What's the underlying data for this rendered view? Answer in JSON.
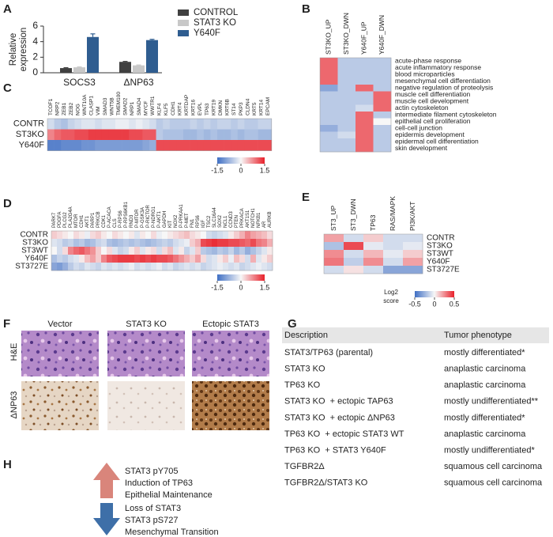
{
  "panel_labels": [
    "A",
    "B",
    "C",
    "D",
    "E",
    "F",
    "G",
    "H"
  ],
  "chart_data": [
    {
      "type": "bar",
      "ylabel": [
        "Relative",
        "expression"
      ],
      "categories": [
        "SOCS3",
        "ΔNP63"
      ],
      "ylim": [
        0,
        6
      ],
      "yticks": [
        0,
        2,
        4,
        6
      ],
      "series": [
        {
          "name": "CONTROL",
          "color": "#404040",
          "values": [
            0.6,
            1.4
          ],
          "errors": [
            0.05,
            0.06
          ]
        },
        {
          "name": "STAT3 KO",
          "color": "#c8c8c8",
          "values": [
            0.7,
            0.95
          ],
          "errors": [
            0.05,
            0.05
          ]
        },
        {
          "name": "Y640F",
          "color": "#2f5d90",
          "values": [
            4.6,
            4.2
          ],
          "errors": [
            0.4,
            0.1
          ]
        }
      ]
    },
    {
      "type": "heatmap",
      "columns": [
        "ST3KO_UP",
        "ST3KO_DWN",
        "Y640F_UP",
        "Y640F_DWN"
      ],
      "rows": [
        "acute-phase response",
        "acute inflammatory response",
        "blood microparticles",
        "mesenchymal cell differentiation",
        "negative regulation of proteolysis",
        "muscle cell differentiation",
        "muscle cell development",
        "actin cytoskeleton",
        "intermediate filament cytoskeleton",
        "epithelial cell proliferation",
        "cell-cell junction",
        "epidermis development",
        "epidermal cell differentiation",
        "skin development"
      ],
      "values": [
        [
          1,
          -0.5,
          -0.5,
          -0.5
        ],
        [
          1,
          -0.5,
          -0.5,
          -0.5
        ],
        [
          1,
          -0.5,
          -0.5,
          -0.5
        ],
        [
          1,
          -0.5,
          -0.5,
          -0.5
        ],
        [
          -0.9,
          -0.5,
          1,
          -0.5
        ],
        [
          -0.5,
          -0.5,
          -0.5,
          1
        ],
        [
          -0.5,
          -0.5,
          -0.5,
          1
        ],
        [
          -0.5,
          -0.5,
          -0.3,
          1
        ],
        [
          -0.5,
          -0.5,
          1,
          -0.5
        ],
        [
          -0.5,
          -0.5,
          1,
          0
        ],
        [
          -0.8,
          -0.5,
          1,
          -0.5
        ],
        [
          -0.5,
          -0.3,
          1,
          -0.5
        ],
        [
          -0.5,
          -0.5,
          1,
          -0.5
        ],
        [
          -0.5,
          -0.5,
          1,
          -0.5
        ]
      ],
      "colorscale": {
        "lim": [
          -1.5,
          1.5
        ],
        "colors": [
          "#3f6fc4",
          "#f7f7f7",
          "#e8202a"
        ]
      }
    },
    {
      "type": "heatmap",
      "columns": [
        "TCOF1",
        "NRP2",
        "ZEB1",
        "ZEB2",
        "NOG",
        "WNT10A",
        "CLASP1",
        "VIM",
        "SMAD3",
        "WNT5B",
        "TMEM100",
        "SMAD2",
        "NRP1",
        "SMAD4",
        "MYCF",
        "WWTR1",
        "KLF4",
        "KLF5",
        "CDH1",
        "KRT4",
        "KRTDAP",
        "KRT16",
        "EVPL",
        "TP63",
        "KRT19",
        "DMKN",
        "KRT6B",
        "ST14",
        "PKP3",
        "CLDN4",
        "KRT5",
        "KRT14",
        "EPCAM"
      ],
      "rows": [
        "CONTR",
        "ST3KO",
        "Y640F"
      ],
      "values": [
        [
          -0.3,
          -0.5,
          -0.6,
          -0.4,
          -0.3,
          -0.2,
          -0.2,
          -0.3,
          -0.2,
          -0.2,
          -0.1,
          -0.1,
          -0.2,
          -0.1,
          -0.2,
          -0.3,
          -0.5,
          -0.4,
          -0.5,
          -0.5,
          -0.5,
          -0.4,
          -0.5,
          -0.4,
          -0.5,
          -0.4,
          -0.4,
          -0.5,
          -0.4,
          -0.5,
          -0.5,
          -0.4,
          -0.4
        ],
        [
          0.8,
          1.0,
          1.1,
          1.1,
          1.2,
          1.2,
          1.3,
          1.3,
          1.3,
          1.3,
          1.3,
          1.3,
          1.2,
          1.2,
          1.1,
          1.1,
          -0.5,
          -0.6,
          -0.6,
          -0.6,
          -0.7,
          -0.7,
          -0.6,
          -0.7,
          -0.6,
          -0.7,
          -0.7,
          -0.6,
          -0.7,
          -0.6,
          -0.6,
          -0.7,
          -0.7
        ],
        [
          -1.3,
          -1.3,
          -1.2,
          -1.2,
          -1.2,
          -1.1,
          -1.1,
          -1.0,
          -1.0,
          -1.0,
          -1.0,
          -1.0,
          -1.0,
          -1.0,
          -0.9,
          -0.8,
          1.2,
          1.2,
          1.2,
          1.2,
          1.2,
          1.2,
          1.2,
          1.2,
          1.2,
          1.2,
          1.2,
          1.2,
          1.2,
          1.2,
          1.2,
          1.2,
          1.2
        ]
      ],
      "colorscale": {
        "lim": [
          -1.5,
          1.5
        ],
        "ticks": [
          -1.5,
          0,
          1.5
        ],
        "colors": [
          "#3f6fc4",
          "#f7f7f7",
          "#e8202a"
        ]
      }
    },
    {
      "type": "heatmap",
      "columns": [
        "PARK7",
        "PDGFA",
        "PLCG2",
        "PLA2G4A",
        "MTOR",
        "CDH1",
        "AKT1",
        "PARP1",
        "PRKCB",
        "CDK1",
        "P-ACACA",
        "CLS",
        "P-RPS6",
        "P-RPS6KB1",
        "RND3",
        "P-MTOR",
        "P-GSK3A",
        "P-RICTOR",
        "P-NDRG1",
        "P-AKT1",
        "GAPDH",
        "KIT",
        "NOX2",
        "P-PRKAA1",
        "P-MET",
        "FN1",
        "RPS6",
        "IGF",
        "TSC2",
        "SLC16A4",
        "SOX2",
        "NCL1",
        "CCND3",
        "PTEN",
        "PRKACA",
        "AKT1S1",
        "NOTCH1",
        "NFKB1",
        "AR",
        "AURKB"
      ],
      "rows": [
        "CONTR",
        "ST3KO",
        "ST3WT",
        "Y640F",
        "ST3727E"
      ],
      "values": [
        [
          0.3,
          0.2,
          0.1,
          0.0,
          0.2,
          0.1,
          -0.1,
          0.2,
          0.3,
          0.1,
          0.0,
          0.2,
          0.1,
          0.0,
          0.1,
          -0.2,
          0.1,
          0.0,
          0.2,
          -0.1,
          0.0,
          0.1,
          0.2,
          0.3,
          0.4,
          0.2,
          0.1,
          0.0,
          -0.3,
          -0.4,
          -0.3,
          -0.2,
          0.1,
          0.3,
          0.5,
          0.8,
          0.6,
          0.5,
          0.4,
          0.2
        ],
        [
          -0.2,
          -0.3,
          -0.5,
          -0.4,
          -0.6,
          -0.5,
          -0.7,
          -0.6,
          -0.4,
          -0.3,
          -0.6,
          -0.7,
          -0.6,
          -0.5,
          -0.6,
          -0.5,
          -0.6,
          -0.7,
          -0.6,
          -0.5,
          -0.4,
          -0.5,
          -0.3,
          -0.2,
          -0.1,
          0.3,
          0.5,
          1.2,
          1.3,
          1.4,
          1.3,
          1.3,
          1.2,
          1.2,
          1.1,
          1.0,
          1.2,
          0.9,
          0.8,
          0.5
        ],
        [
          0.0,
          -0.3,
          0.2,
          0.8,
          1.0,
          1.1,
          0.9,
          0.7,
          0.3,
          0.0,
          0.2,
          -0.2,
          -0.4,
          -0.3,
          0.1,
          0.3,
          -0.2,
          0.1,
          0.2,
          -0.3,
          0.2,
          0.4,
          -0.2,
          0.1,
          -0.4,
          -0.2,
          0.3,
          -0.5,
          -0.6,
          -0.7,
          -0.5,
          -0.6,
          -0.4,
          -0.7,
          -0.5,
          -0.8,
          -0.6,
          -0.4,
          -0.2,
          0.1
        ],
        [
          -0.6,
          -0.4,
          -0.5,
          -0.3,
          -0.2,
          0.1,
          0.4,
          0.6,
          0.3,
          0.8,
          1.1,
          1.2,
          1.3,
          1.3,
          1.3,
          1.2,
          1.3,
          1.2,
          1.3,
          1.2,
          1.2,
          1.1,
          0.9,
          0.7,
          0.5,
          0.3,
          0.6,
          0.2,
          -0.3,
          -0.2,
          0.1,
          0.3,
          -0.1,
          0.4,
          0.2,
          -0.3,
          0.5,
          -0.2,
          0.1,
          0.3
        ],
        [
          -0.9,
          -1.0,
          -0.8,
          -0.5,
          -0.3,
          -0.4,
          -0.2,
          -0.3,
          -0.4,
          -0.2,
          -0.3,
          -0.2,
          -0.3,
          -0.2,
          -0.1,
          -0.3,
          -0.2,
          -0.3,
          -0.2,
          -0.1,
          -0.3,
          -0.2,
          -0.4,
          -0.3,
          -0.2,
          -0.3,
          -0.2,
          -0.4,
          -0.3,
          -0.2,
          -0.1,
          -0.2,
          -0.3,
          -0.2,
          -0.4,
          -0.3,
          -0.2,
          -0.1,
          -0.2,
          -0.3
        ]
      ],
      "colorscale": {
        "lim": [
          -1.5,
          1.5
        ],
        "ticks": [
          -1.5,
          0,
          1.5
        ],
        "colors": [
          "#3f6fc4",
          "#f7f7f7",
          "#e8202a"
        ]
      }
    },
    {
      "type": "heatmap",
      "columns": [
        "ST3_UP",
        "ST3_DWN",
        "TP63",
        "RAS/MAPK",
        "PI3K/AKT"
      ],
      "rows": [
        "CONTR",
        "ST3KO",
        "ST3WT",
        "Y640F",
        "ST3727E"
      ],
      "values": [
        [
          0.2,
          -0.1,
          0.1,
          -0.1,
          -0.1
        ],
        [
          -0.2,
          0.4,
          -0.05,
          -0.1,
          -0.05
        ],
        [
          0.25,
          -0.1,
          0.15,
          -0.05,
          0.1
        ],
        [
          0.3,
          -0.15,
          0.25,
          -0.1,
          0.2
        ],
        [
          -0.1,
          0.05,
          -0.1,
          -0.3,
          -0.3
        ]
      ],
      "colorscale": {
        "lim": [
          -0.5,
          0.5
        ],
        "ticks": [
          -0.5,
          0,
          0.5
        ],
        "label": [
          "Log2",
          "score"
        ],
        "colors": [
          "#3f6fc4",
          "#f7f7f7",
          "#e8202a"
        ]
      }
    }
  ],
  "images": {
    "columns": [
      "Vector",
      "STAT3 KO",
      "Ectopic STAT3"
    ],
    "rows": [
      "H&E",
      "ΔNP63"
    ]
  },
  "table": {
    "header": [
      "Description",
      "Tumor phenotype"
    ],
    "rows": [
      [
        "STAT3/TP63 (parental)",
        "mostly differentiated*"
      ],
      [
        "STAT3 KO",
        "anaplastic carcinoma"
      ],
      [
        "TP63 KO",
        "anaplastic carcinoma"
      ],
      [
        "STAT3 KO  + ectopic TAP63",
        "mostly undifferentiated**"
      ],
      [
        "STAT3 KO  + ectopic ΔNP63",
        "mostly differentiated*"
      ],
      [
        "TP63 KO  + ectopic STAT3 WT",
        "anaplastic carcinoma"
      ],
      [
        "TP63 KO  + STAT3 Y640F",
        "mostly undifferentiated*"
      ],
      [
        "TGFBR2Δ",
        "squamous cell carcinoma"
      ],
      [
        "TGFBR2Δ/STAT3 KO",
        "squamous cell carcinoma"
      ]
    ]
  },
  "summary": {
    "up": [
      "STAT3 pY705",
      "Induction of TP63",
      "Epithelial Maintenance"
    ],
    "down": [
      "Loss of STAT3",
      "STAT3 pS727",
      "Mesenchymal Transition"
    ]
  }
}
